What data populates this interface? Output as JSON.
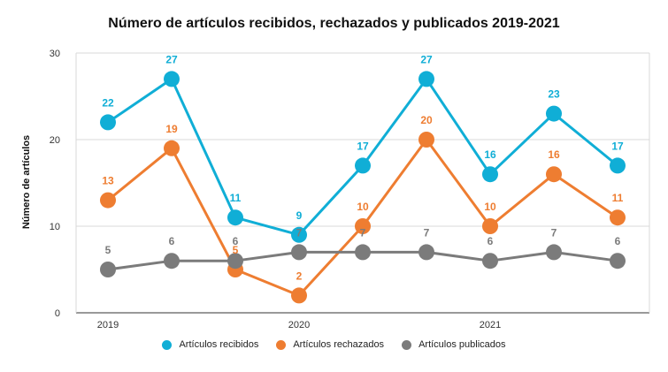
{
  "chart_data": {
    "type": "line",
    "title": "Número de artículos recibidos, rechazados y publicados 2019-2021",
    "xlabel": "",
    "ylabel": "Número de artículos",
    "ylim": [
      0,
      30
    ],
    "yticks": [
      0,
      10,
      20,
      30
    ],
    "x": [
      0,
      1,
      2,
      3,
      4,
      5,
      6,
      7,
      8
    ],
    "xtick_labels": [
      {
        "at": 0,
        "label": "2019"
      },
      {
        "at": 3,
        "label": "2020"
      },
      {
        "at": 6,
        "label": "2021"
      }
    ],
    "grid": true,
    "legend": "bottom",
    "series": [
      {
        "name": "Artículos recibidos",
        "color": "#10aed6",
        "values": [
          22,
          27,
          11,
          9,
          17,
          27,
          16,
          23,
          17
        ]
      },
      {
        "name": "Artículos rechazados",
        "color": "#ee7d31",
        "values": [
          13,
          19,
          5,
          2,
          10,
          20,
          10,
          16,
          11
        ]
      },
      {
        "name": "Artículos publicados",
        "color": "#7b7b7b",
        "values": [
          5,
          6,
          6,
          7,
          7,
          7,
          6,
          7,
          6
        ]
      }
    ]
  }
}
